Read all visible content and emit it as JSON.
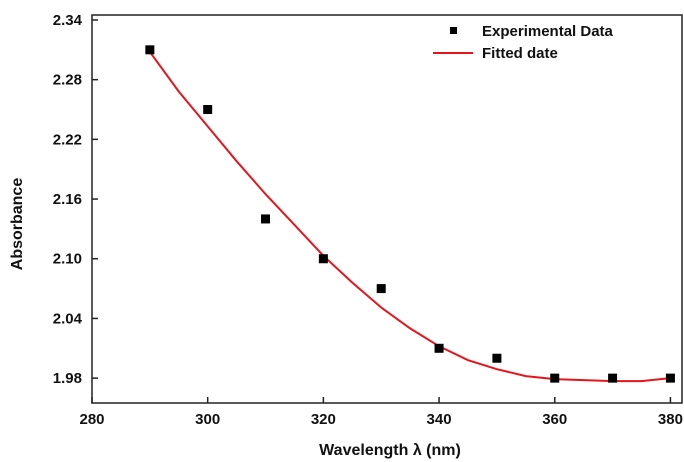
{
  "chart_data": {
    "type": "scatter",
    "xlabel": "Wavelength λ (nm)",
    "ylabel": "Absorbance",
    "xlim": [
      280,
      382
    ],
    "ylim": [
      1.955,
      2.345
    ],
    "xticks": [
      280,
      300,
      320,
      340,
      360,
      380
    ],
    "xtick_labels": [
      "280",
      "300",
      "320",
      "340",
      "360",
      "380"
    ],
    "yticks": [
      1.98,
      2.04,
      2.1,
      2.16,
      2.22,
      2.28,
      2.34
    ],
    "ytick_labels": [
      "1.98",
      "2.04",
      "2.10",
      "2.16",
      "2.22",
      "2.28",
      "2.34"
    ],
    "grid": false,
    "legend_position": "top-right",
    "series": [
      {
        "name": "Experimental Data",
        "kind": "scatter",
        "marker": "square",
        "color": "#000000",
        "x": [
          290,
          300,
          310,
          320,
          330,
          340,
          350,
          360,
          370,
          380
        ],
        "y": [
          2.31,
          2.25,
          2.14,
          2.1,
          2.07,
          2.01,
          2.0,
          1.98,
          1.98,
          1.98
        ]
      },
      {
        "name": "Fitted date",
        "kind": "line",
        "color": "#e8141c",
        "x": [
          290,
          295,
          300,
          305,
          310,
          315,
          320,
          325,
          330,
          335,
          340,
          345,
          350,
          355,
          360,
          365,
          370,
          375,
          380
        ],
        "y": [
          2.308,
          2.268,
          2.233,
          2.198,
          2.165,
          2.134,
          2.103,
          2.076,
          2.051,
          2.03,
          2.012,
          1.998,
          1.989,
          1.982,
          1.979,
          1.978,
          1.977,
          1.977,
          1.98
        ]
      }
    ]
  }
}
